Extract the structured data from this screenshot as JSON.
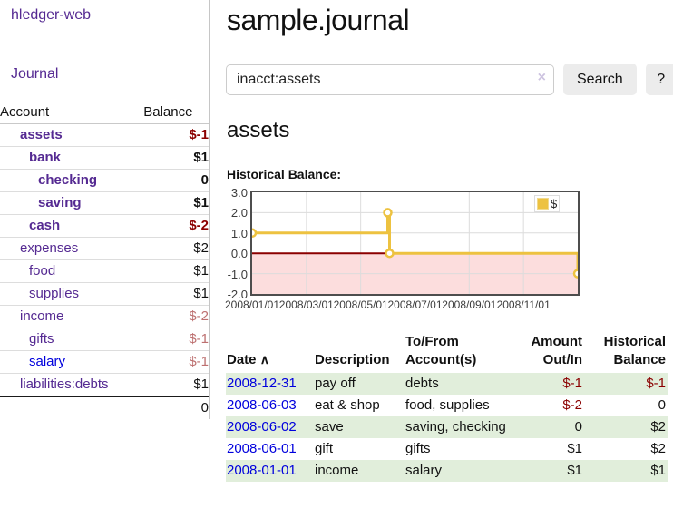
{
  "app": {
    "title": "hledger-web"
  },
  "sidebar": {
    "journal_link": "Journal",
    "accounts_table": {
      "account_header": "Account",
      "balance_header": "Balance",
      "rows": [
        {
          "name": "assets",
          "indent": 1,
          "bold": true,
          "balance": "$-1",
          "neg": "strong"
        },
        {
          "name": "bank",
          "indent": 2,
          "bold": true,
          "balance": "$1"
        },
        {
          "name": "checking",
          "indent": 3,
          "bold": true,
          "balance": "0"
        },
        {
          "name": "saving",
          "indent": 3,
          "bold": true,
          "balance": "$1"
        },
        {
          "name": "cash",
          "indent": 2,
          "bold": true,
          "balance": "$-2",
          "neg": "strong"
        },
        {
          "name": "expenses",
          "indent": 1,
          "bold": false,
          "balance": "$2"
        },
        {
          "name": "food",
          "indent": 2,
          "bold": false,
          "balance": "$1"
        },
        {
          "name": "supplies",
          "indent": 2,
          "bold": false,
          "balance": "$1"
        },
        {
          "name": "income",
          "indent": 1,
          "bold": false,
          "balance": "$-2",
          "neg": "soft"
        },
        {
          "name": "gifts",
          "indent": 2,
          "bold": false,
          "balance": "$-1",
          "neg": "soft"
        },
        {
          "name": "salary",
          "indent": 2,
          "bold": false,
          "balance": "$-1",
          "neg": "soft",
          "blue": true
        },
        {
          "name": "liabilities:debts",
          "indent": 1,
          "bold": false,
          "balance": "$1"
        }
      ],
      "total": "0"
    }
  },
  "header": {
    "title": "sample.journal"
  },
  "search": {
    "value": "inacct:assets",
    "clear_icon": "×",
    "button_label": "Search",
    "help_label": "?"
  },
  "account_page": {
    "title": "assets",
    "chart_label": "Historical Balance:"
  },
  "chart_data": {
    "type": "line",
    "style": "step-after",
    "title": "Historical Balance",
    "series": [
      {
        "name": "$",
        "color": "#edc240",
        "points": [
          [
            "2008-01-01",
            1
          ],
          [
            "2008-06-01",
            2
          ],
          [
            "2008-06-03",
            0
          ],
          [
            "2008-12-31",
            -1
          ]
        ]
      }
    ],
    "x_range": [
      "2008-01-01",
      "2008-12-31"
    ],
    "x_ticks": [
      {
        "m": 0,
        "label": "2008/01/01"
      },
      {
        "m": 2,
        "label": "2008/03/01"
      },
      {
        "m": 4,
        "label": "2008/05/01"
      },
      {
        "m": 6,
        "label": "2008/07/01"
      },
      {
        "m": 8,
        "label": "2008/09/01"
      },
      {
        "m": 10,
        "label": "2008/11/01"
      }
    ],
    "y_ticks": [
      {
        "v": 3,
        "label": "3.0"
      },
      {
        "v": 2,
        "label": "2.0"
      },
      {
        "v": 1,
        "label": "1.0"
      },
      {
        "v": 0,
        "label": "0.0"
      },
      {
        "v": -1,
        "label": "-1.0"
      },
      {
        "v": -2,
        "label": "-2.0"
      }
    ],
    "ylim": [
      -2,
      3
    ],
    "grid": true,
    "negative_fill": "#fcdddd",
    "zero_line_color": "#8b0000",
    "legend": {
      "position": "top-right",
      "entries": [
        {
          "label": "$",
          "color": "#edc240"
        }
      ]
    }
  },
  "register_table": {
    "headers": {
      "date": "Date",
      "sort_icon": "∧",
      "description": "Description",
      "accounts": "To/From Account(s)",
      "amount": "Amount Out/In",
      "balance": "Historical Balance"
    },
    "rows": [
      {
        "date": "2008-12-31",
        "description": "pay off",
        "accounts": "debts",
        "amount": "$-1",
        "amount_neg": true,
        "balance": "$-1",
        "balance_neg": true
      },
      {
        "date": "2008-06-03",
        "description": "eat & shop",
        "accounts": "food, supplies",
        "amount": "$-2",
        "amount_neg": true,
        "balance": "0",
        "balance_neg": false
      },
      {
        "date": "2008-06-02",
        "description": "save",
        "accounts": "saving, checking",
        "amount": "0",
        "amount_neg": false,
        "balance": "$2",
        "balance_neg": false
      },
      {
        "date": "2008-06-01",
        "description": "gift",
        "accounts": "gifts",
        "amount": "$1",
        "amount_neg": false,
        "balance": "$2",
        "balance_neg": false
      },
      {
        "date": "2008-01-01",
        "description": "income",
        "accounts": "salary",
        "amount": "$1",
        "amount_neg": false,
        "balance": "$1",
        "balance_neg": false
      }
    ]
  }
}
